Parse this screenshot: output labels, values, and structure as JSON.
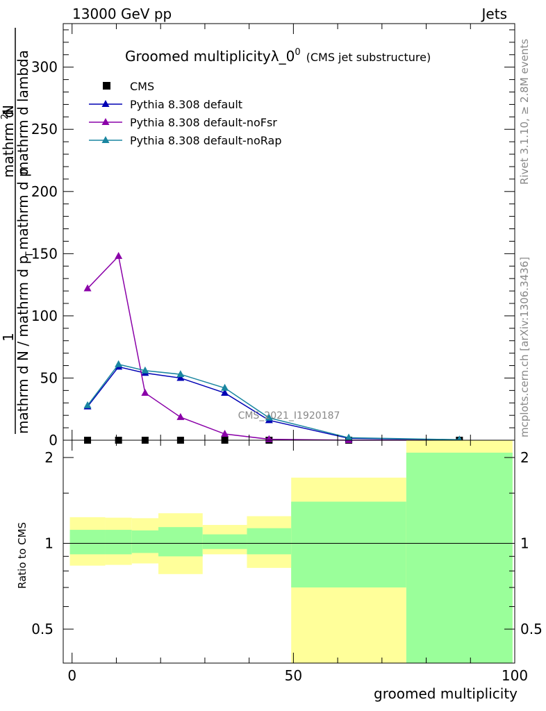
{
  "header": {
    "left": "13000 GeV pp",
    "right": "Jets"
  },
  "side_labels": {
    "top": "Rivet 3.1.10, ≥ 2.8M events",
    "bottom": "mcplots.cern.ch [arXiv:1306.3436]"
  },
  "watermark": "CMS_2021_I1920187",
  "colors": {
    "cms": "#000000",
    "default": "#0000b4",
    "noFsr": "#8a00a8",
    "noRap": "#1a86a0",
    "band_green": "#9aff9a",
    "band_yellow": "#ffff9a"
  },
  "chart_data": [
    {
      "type": "line",
      "title": "Groomed multiplicityλ_0",
      "title_sup": "0",
      "title_suffix": "(CMS jet substructure)",
      "ylabel_main": "mathrm d N / mathrm d p",
      "ylabel_sub": "T",
      "ylabel_mid": "mathrm d p",
      "ylabel_top": "mathrm d lambda",
      "ylabel_num": "mathrm d",
      "ylabel_num_sup": "2",
      "ylabel_n": "N",
      "ylabel_one": "1",
      "xlim": [
        -2,
        100
      ],
      "ylim": [
        0,
        335
      ],
      "yticks": [
        0,
        50,
        100,
        150,
        200,
        250,
        300
      ],
      "legend": [
        {
          "key": "cms",
          "label": "CMS",
          "marker": "square"
        },
        {
          "key": "default",
          "label": "Pythia 8.308 default",
          "marker": "triangle"
        },
        {
          "key": "noFsr",
          "label": "Pythia 8.308 default-noFsr",
          "marker": "triangle"
        },
        {
          "key": "noRap",
          "label": "Pythia 8.308 default-noRap",
          "marker": "triangle"
        }
      ],
      "series": [
        {
          "key": "cms",
          "name": "CMS",
          "x": [
            3.5,
            10.5,
            16.5,
            24.5,
            34.5,
            44.5,
            62.5,
            87.5
          ],
          "y": [
            0,
            0,
            0,
            0,
            0,
            0,
            0,
            0
          ]
        },
        {
          "key": "default",
          "name": "Pythia 8.308 default",
          "x": [
            3.5,
            10.5,
            16.5,
            24.5,
            34.5,
            44.5,
            62.5,
            87.5
          ],
          "y": [
            27,
            59,
            54,
            50,
            38,
            16,
            1.5,
            0.3
          ]
        },
        {
          "key": "noFsr",
          "name": "Pythia 8.308 default-noFsr",
          "x": [
            3.5,
            10.5,
            16.5,
            24.5,
            34.5,
            44.5,
            62.5,
            87.5
          ],
          "y": [
            122,
            148,
            38,
            18.5,
            5,
            0.8,
            0,
            0
          ]
        },
        {
          "key": "noRap",
          "name": "Pythia 8.308 default-noRap",
          "x": [
            3.5,
            10.5,
            16.5,
            24.5,
            34.5,
            44.5,
            62.5,
            87.5
          ],
          "y": [
            28,
            61,
            56,
            53,
            42,
            18,
            2,
            0.4
          ]
        }
      ]
    },
    {
      "type": "area",
      "ylabel": "Ratio to CMS",
      "xlabel": "groomed multiplicity",
      "xlim": [
        -2,
        100
      ],
      "ylim": [
        0.38,
        2.3
      ],
      "xticks": [
        0,
        50,
        100
      ],
      "yticks": [
        0.5,
        1,
        2
      ],
      "bins": [
        {
          "lo": -0.5,
          "hi": 7.5,
          "green": [
            0.915,
            1.115
          ],
          "yellow": [
            0.835,
            1.235
          ]
        },
        {
          "lo": 7.5,
          "hi": 13.5,
          "green": [
            0.915,
            1.115
          ],
          "yellow": [
            0.84,
            1.23
          ]
        },
        {
          "lo": 13.5,
          "hi": 19.5,
          "green": [
            0.925,
            1.11
          ],
          "yellow": [
            0.85,
            1.225
          ]
        },
        {
          "lo": 19.5,
          "hi": 29.5,
          "green": [
            0.9,
            1.14
          ],
          "yellow": [
            0.78,
            1.275
          ]
        },
        {
          "lo": 29.5,
          "hi": 39.5,
          "green": [
            0.955,
            1.075
          ],
          "yellow": [
            0.915,
            1.16
          ]
        },
        {
          "lo": 39.5,
          "hi": 49.5,
          "green": [
            0.915,
            1.13
          ],
          "yellow": [
            0.82,
            1.245
          ]
        },
        {
          "lo": 49.5,
          "hi": 75.5,
          "green": [
            0.7,
            1.4
          ],
          "yellow": [
            0.38,
            1.7
          ]
        },
        {
          "lo": 75.5,
          "hi": 99.5,
          "green": [
            0.38,
            2.08
          ],
          "yellow": [
            0.38,
            2.3
          ]
        }
      ]
    }
  ]
}
